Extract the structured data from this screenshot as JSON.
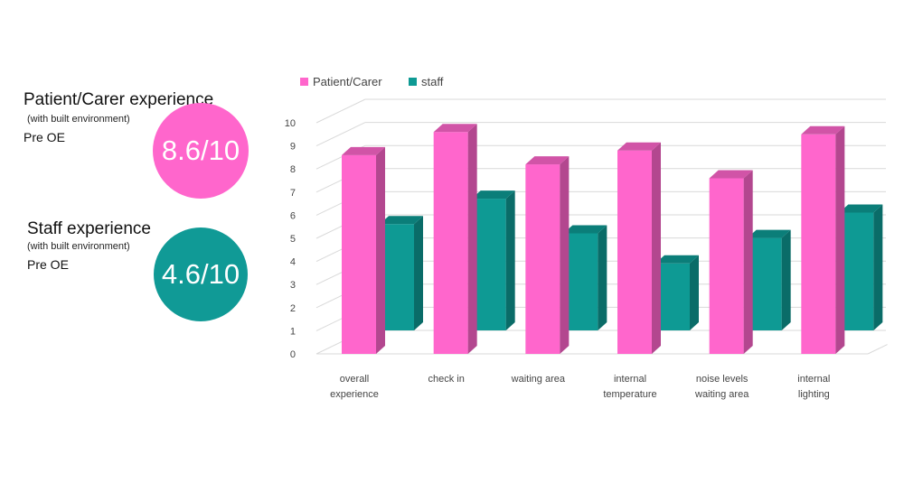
{
  "summaries": [
    {
      "title": "Patient/Carer experience",
      "subtitle": "(with built environment)",
      "stage": "Pre OE",
      "score": "8.6/10",
      "color": "#ff66cc"
    },
    {
      "title": "Staff experience",
      "subtitle": "(with built environment)",
      "stage": "Pre OE",
      "score": "4.6/10",
      "color": "#109a96"
    }
  ],
  "chart_data": {
    "type": "bar",
    "style": "3d-clustered-column",
    "title": "",
    "xlabel": "",
    "ylabel": "",
    "ylim": [
      0,
      10
    ],
    "yticks": [
      "0",
      "1",
      "2",
      "3",
      "4",
      "5",
      "6",
      "7",
      "8",
      "9",
      "10"
    ],
    "grid": true,
    "legend_position": "top",
    "categories": [
      [
        "overall",
        "experience"
      ],
      [
        "check in"
      ],
      [
        "waiting area"
      ],
      [
        "internal",
        "temperature"
      ],
      [
        "noise levels",
        "waiting area"
      ],
      [
        "internal",
        "lighting"
      ]
    ],
    "series": [
      {
        "name": "Patient/Carer",
        "color": "#ff66cc",
        "values": [
          8.6,
          9.6,
          8.2,
          8.8,
          7.6,
          9.5
        ]
      },
      {
        "name": "staff",
        "color": "#0e9a94",
        "values": [
          4.6,
          5.7,
          4.2,
          2.9,
          4.0,
          5.1
        ]
      }
    ]
  }
}
